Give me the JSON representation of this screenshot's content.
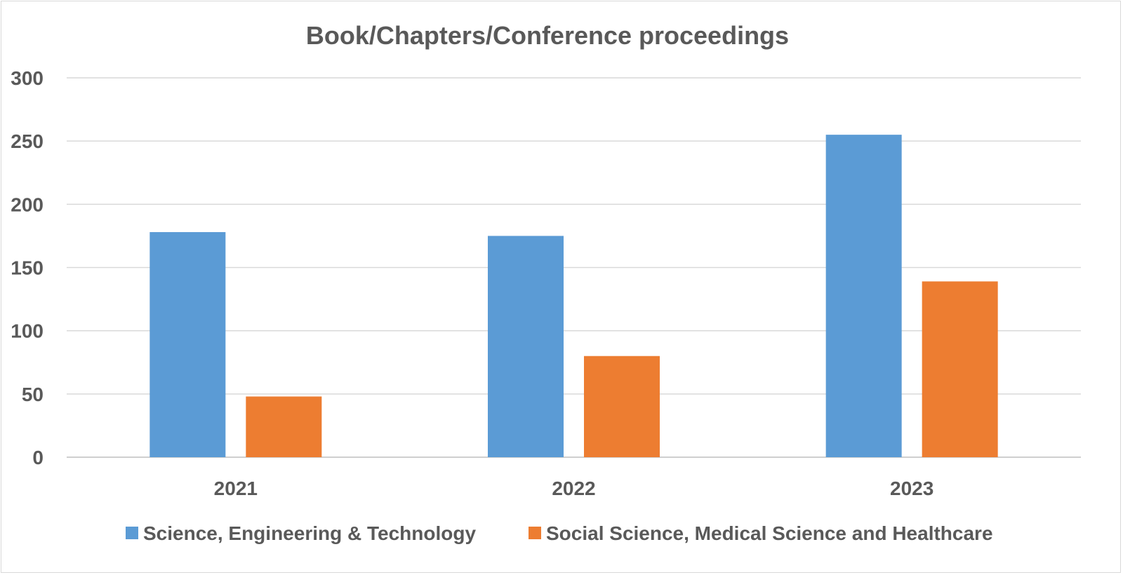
{
  "chart_data": {
    "type": "bar",
    "title": "Book/Chapters/Conference proceedings",
    "categories": [
      "2021",
      "2022",
      "2023"
    ],
    "series": [
      {
        "name": "Science, Engineering & Technology",
        "color": "#5b9bd5",
        "values": [
          178,
          175,
          255
        ]
      },
      {
        "name": "Social Science, Medical Science and Healthcare",
        "color": "#ed7d31",
        "values": [
          48,
          80,
          139
        ]
      }
    ],
    "xlabel": "",
    "ylabel": "",
    "ylim": [
      0,
      300
    ],
    "yticks": [
      "0",
      "50",
      "100",
      "150",
      "200",
      "250",
      "300"
    ],
    "grid": true,
    "legend": "bottom"
  }
}
